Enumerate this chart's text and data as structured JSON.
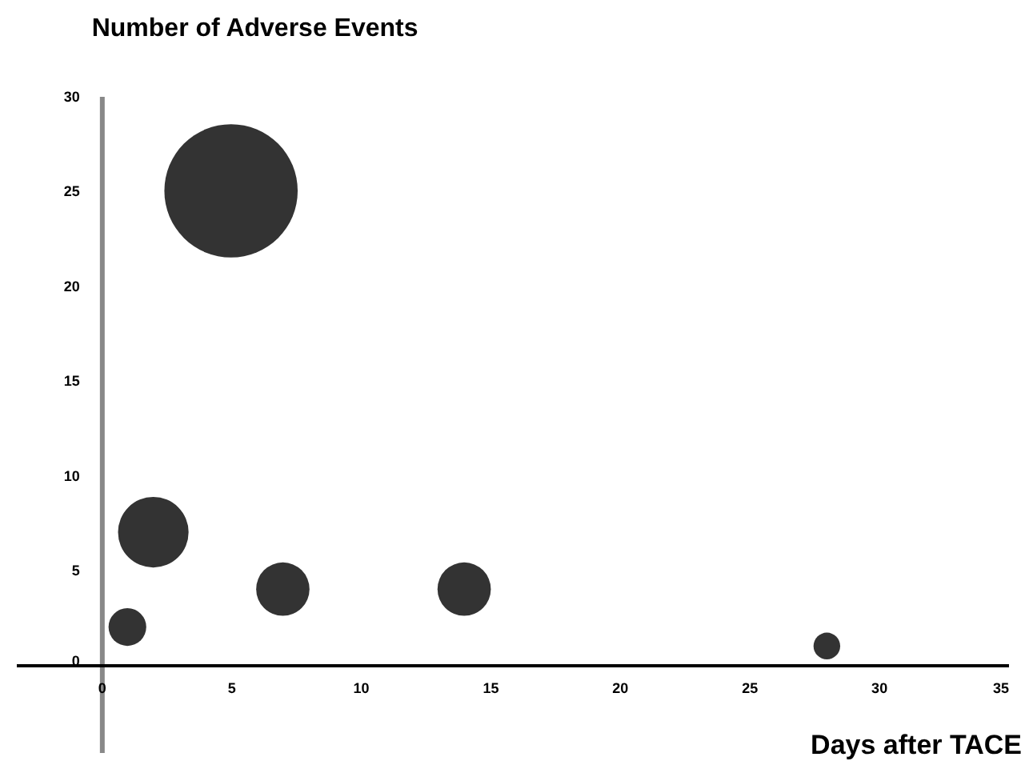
{
  "chart_data": {
    "type": "bubble",
    "xlabel": "Days after TACE",
    "ylabel": "Number of Adverse Events",
    "x": [
      1,
      2,
      5,
      7,
      14,
      28
    ],
    "series": [
      {
        "color": "#333333",
        "values": [
          2,
          7,
          25,
          4,
          4,
          1
        ],
        "sizes": [
          0.08,
          0.28,
          1,
          0.16,
          0.16,
          0.04
        ]
      }
    ],
    "xlim": [
      -3.3,
      35
    ],
    "xticks": [
      0,
      5,
      10,
      15,
      20,
      25,
      30,
      35
    ],
    "ylim": [
      -4.6,
      30
    ],
    "yticks": [
      0,
      5,
      10,
      15,
      20,
      25,
      30
    ],
    "grid": false,
    "legend": false
  }
}
